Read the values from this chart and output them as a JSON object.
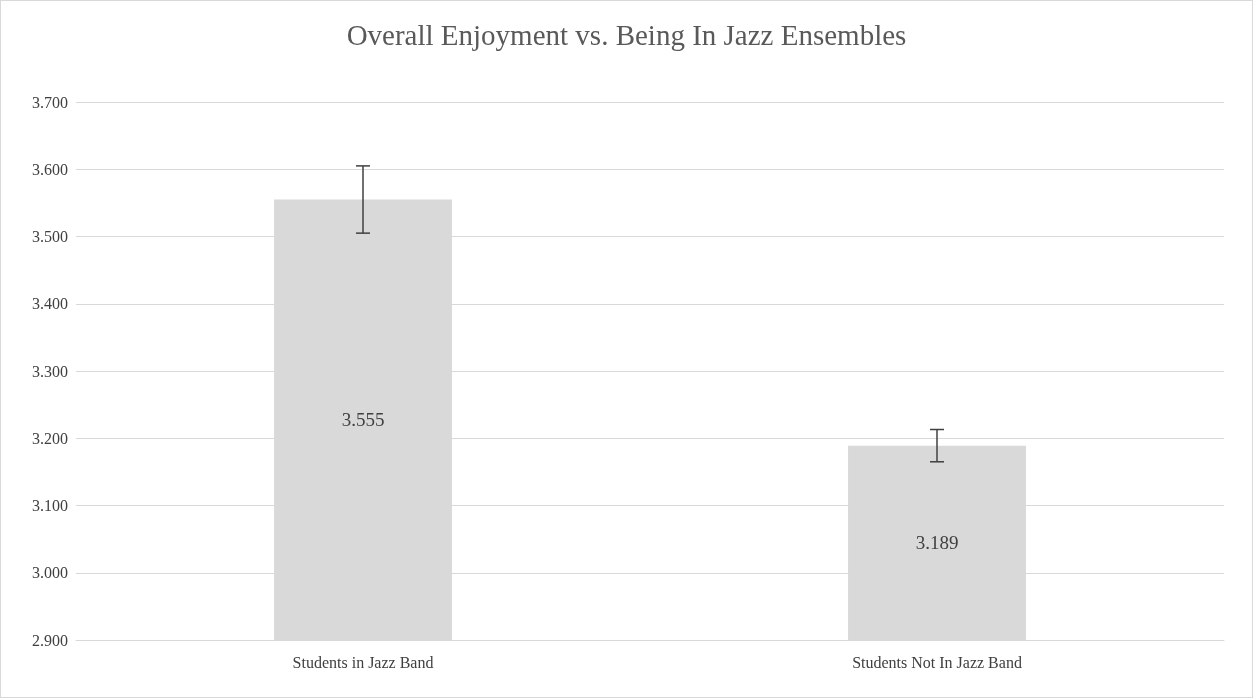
{
  "chart_data": {
    "type": "bar",
    "title": "Overall Enjoyment vs. Being In Jazz Ensembles",
    "categories": [
      "Students in Jazz Band",
      "Students Not In Jazz Band"
    ],
    "values": [
      3.555,
      3.189
    ],
    "errors": [
      0.05,
      0.024
    ],
    "color": "#d9d9d9",
    "ylim": [
      2.9,
      3.7
    ],
    "yticks": [
      {
        "value": 2.9,
        "label": "2.900"
      },
      {
        "value": 3.0,
        "label": "3.000"
      },
      {
        "value": 3.1,
        "label": "3.100"
      },
      {
        "value": 3.2,
        "label": "3.200"
      },
      {
        "value": 3.3,
        "label": "3.300"
      },
      {
        "value": 3.4,
        "label": "3.400"
      },
      {
        "value": 3.5,
        "label": "3.500"
      },
      {
        "value": 3.6,
        "label": "3.600"
      },
      {
        "value": 3.7,
        "label": "3.700"
      }
    ],
    "grid": true,
    "data_labels": true
  }
}
